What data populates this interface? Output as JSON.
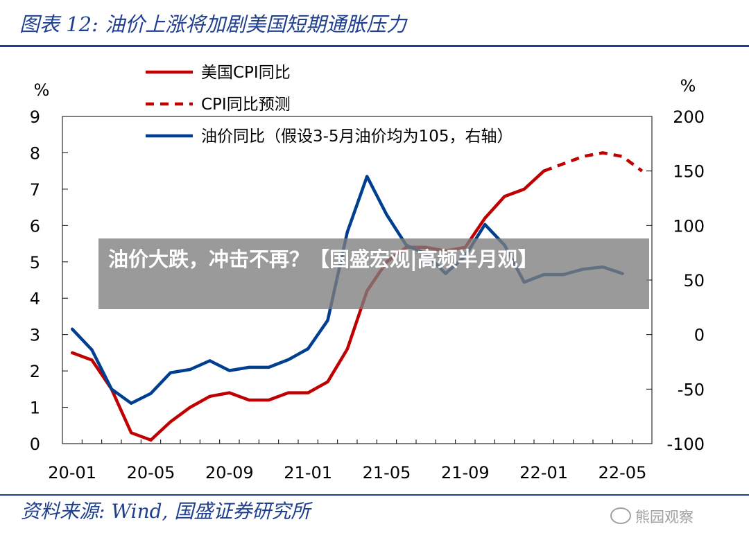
{
  "header": {
    "figure_title": "图表 12:  油价上涨将加剧美国短期通胀压力"
  },
  "footer": {
    "source": "资料来源:  Wind, 国盛证券研究所",
    "watermark": "熊园观察"
  },
  "overlay": {
    "text": "油价大跌，冲击不再？【国盛宏观|高频半月观】"
  },
  "chart_data": {
    "type": "line",
    "x": [
      "20-01",
      "20-02",
      "20-03",
      "20-04",
      "20-05",
      "20-06",
      "20-07",
      "20-08",
      "20-09",
      "20-10",
      "20-11",
      "20-12",
      "21-01",
      "21-02",
      "21-03",
      "21-04",
      "21-05",
      "21-06",
      "21-07",
      "21-08",
      "21-09",
      "21-10",
      "21-11",
      "21-12",
      "22-01",
      "22-02",
      "22-03",
      "22-04",
      "22-05",
      "22-06"
    ],
    "x_tick_labels": [
      "20-01",
      "20-05",
      "20-09",
      "21-01",
      "21-05",
      "21-09",
      "22-01",
      "22-05"
    ],
    "y_left": {
      "label": "%",
      "range": [
        0,
        9
      ],
      "ticks": [
        0,
        1,
        2,
        3,
        4,
        5,
        6,
        7,
        8,
        9
      ]
    },
    "y_right": {
      "label": "%",
      "range": [
        -100,
        200
      ],
      "ticks": [
        -100,
        -50,
        0,
        50,
        100,
        150,
        200
      ]
    },
    "series": [
      {
        "name": "美国CPI同比",
        "axis": "left",
        "color": "#c00000",
        "dash": "solid",
        "values": [
          2.5,
          2.3,
          1.5,
          0.3,
          0.1,
          0.6,
          1.0,
          1.3,
          1.4,
          1.2,
          1.2,
          1.4,
          1.4,
          1.7,
          2.6,
          4.2,
          5.0,
          5.4,
          5.4,
          5.3,
          5.4,
          6.2,
          6.8,
          7.0,
          7.5,
          null,
          null,
          null,
          null,
          null
        ]
      },
      {
        "name": "CPI同比预测",
        "axis": "left",
        "color": "#c00000",
        "dash": "dashed",
        "values": [
          null,
          null,
          null,
          null,
          null,
          null,
          null,
          null,
          null,
          null,
          null,
          null,
          null,
          null,
          null,
          null,
          null,
          null,
          null,
          null,
          null,
          null,
          null,
          null,
          7.5,
          7.7,
          7.9,
          8.0,
          7.9,
          7.5
        ]
      },
      {
        "name": "油价同比（假设3-5月油价均为105，右轴）",
        "axis": "right",
        "color": "#003f8f",
        "dash": "solid",
        "values": [
          5,
          -14,
          -50,
          -63,
          -54,
          -35,
          -32,
          -24,
          -33,
          -30,
          -30,
          -23,
          -13,
          13,
          94,
          145,
          110,
          82,
          74,
          56,
          72,
          101,
          82,
          48,
          55,
          55,
          60,
          62,
          56,
          null
        ]
      }
    ]
  }
}
